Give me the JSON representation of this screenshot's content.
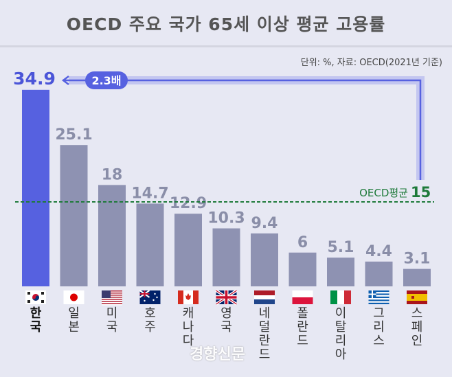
{
  "chart_data": {
    "type": "bar",
    "title": "OECD 주요 국가 65세 이상 평균 고용률",
    "source": "단위: %, 자료: OECD(2021년 기준)",
    "categories": [
      "한국",
      "일본",
      "미국",
      "호주",
      "캐나다",
      "영국",
      "네덜란드",
      "폴란드",
      "이탈리아",
      "그리스",
      "스페인"
    ],
    "values": [
      34.9,
      25.1,
      18,
      14.7,
      12.9,
      10.3,
      9.4,
      6,
      5.1,
      4.4,
      3.1
    ],
    "value_labels": [
      "34.9",
      "25.1",
      "18",
      "14.7",
      "12.9",
      "10.3",
      "9.4",
      "6",
      "5.1",
      "4.4",
      "3.1"
    ],
    "flags": [
      "kr",
      "jp",
      "us",
      "au",
      "ca",
      "gb",
      "nl",
      "pl",
      "it",
      "gr",
      "es"
    ],
    "ylim": [
      0,
      35
    ],
    "reference_line": {
      "label": "OECD평균",
      "value": 15,
      "value_label": "15",
      "color": "#1e7a3a"
    },
    "annotation": {
      "label": "2.3배"
    },
    "colors": {
      "highlight": "#5661e0",
      "bar": "#8e92b2",
      "highlight_label": "#4b55d8",
      "label": "#8a8ea8"
    }
  },
  "watermark": "경향신문"
}
